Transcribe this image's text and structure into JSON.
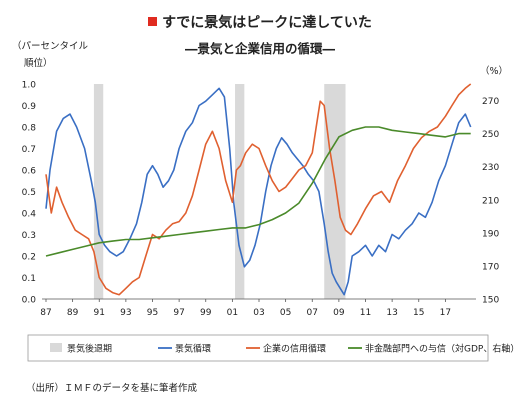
{
  "title": "すでに景気はピークに達していた",
  "subtitle": "―景気と企業信用の循環―",
  "source_note": "（出所）ＩＭＦのデータを基に筆者作成",
  "colors": {
    "recession": "#d9d9d9",
    "business_cycle": "#3a6fc4",
    "credit_cycle": "#e06030",
    "credit_to_gdp": "#4a8a2a",
    "title_marker": "#e02b20"
  },
  "chart_data": {
    "type": "line",
    "title": "すでに景気はピークに達していた",
    "subtitle": "―景気と企業信用の循環―",
    "ylabel_left": "（パーセンタイル順位）",
    "ylabel_left_line1": "（パーセンタイル",
    "ylabel_left_line2": "順位）",
    "ylabel_right": "（%）",
    "ylim_left": [
      0,
      1.0
    ],
    "ylim_right": [
      150,
      280
    ],
    "left_ticks": [
      0.0,
      0.1,
      0.2,
      0.3,
      0.4,
      0.5,
      0.6,
      0.7,
      0.8,
      0.9,
      1.0
    ],
    "left_tick_labels": [
      "0.0",
      "0.1",
      "0.2",
      "0.3",
      "0.4",
      "0.5",
      "0.6",
      "0.7",
      "0.8",
      "0.9",
      "1.0"
    ],
    "right_ticks": [
      150,
      170,
      190,
      210,
      230,
      250,
      270
    ],
    "xlim": [
      1986.7,
      2019.3
    ],
    "x_ticks": [
      1987,
      1989,
      1991,
      1993,
      1995,
      1997,
      1999,
      2001,
      2003,
      2005,
      2007,
      2009,
      2011,
      2013,
      2015,
      2017
    ],
    "x_tick_labels": [
      "87",
      "89",
      "91",
      "93",
      "95",
      "97",
      "99",
      "01",
      "03",
      "05",
      "07",
      "09",
      "11",
      "13",
      "15",
      "17"
    ],
    "grid": false,
    "legend_position": "bottom",
    "recessions": [
      [
        1990.6,
        1991.3
      ],
      [
        2001.2,
        2001.9
      ],
      [
        2007.9,
        2009.5
      ]
    ],
    "series": [
      {
        "name": "景気循環",
        "key": "business_cycle",
        "axis": "left",
        "x": [
          1987.0,
          1987.3,
          1987.8,
          1988.3,
          1988.8,
          1989.3,
          1989.9,
          1990.4,
          1990.7,
          1991.0,
          1991.4,
          1991.8,
          1992.3,
          1992.8,
          1993.3,
          1993.8,
          1994.2,
          1994.6,
          1995.0,
          1995.4,
          1995.8,
          1996.2,
          1996.6,
          1997.0,
          1997.5,
          1998.0,
          1998.5,
          1999.0,
          1999.5,
          2000.0,
          2000.4,
          2000.8,
          2001.1,
          2001.5,
          2001.9,
          2002.3,
          2002.7,
          2003.1,
          2003.5,
          2003.9,
          2004.3,
          2004.7,
          2005.1,
          2005.5,
          2005.9,
          2006.3,
          2006.7,
          2007.1,
          2007.5,
          2007.9,
          2008.2,
          2008.5,
          2008.8,
          2009.1,
          2009.4,
          2009.7,
          2010.0,
          2010.5,
          2011.0,
          2011.5,
          2012.0,
          2012.5,
          2013.0,
          2013.5,
          2014.0,
          2014.5,
          2015.0,
          2015.5,
          2016.0,
          2016.5,
          2017.0,
          2017.5,
          2018.0,
          2018.5,
          2018.9
        ],
        "values": [
          0.42,
          0.6,
          0.78,
          0.84,
          0.86,
          0.8,
          0.7,
          0.55,
          0.45,
          0.3,
          0.25,
          0.22,
          0.2,
          0.22,
          0.28,
          0.35,
          0.45,
          0.58,
          0.62,
          0.58,
          0.52,
          0.55,
          0.6,
          0.7,
          0.78,
          0.82,
          0.9,
          0.92,
          0.95,
          0.98,
          0.94,
          0.7,
          0.45,
          0.25,
          0.15,
          0.18,
          0.25,
          0.35,
          0.5,
          0.62,
          0.7,
          0.75,
          0.72,
          0.68,
          0.65,
          0.62,
          0.58,
          0.55,
          0.5,
          0.35,
          0.22,
          0.12,
          0.08,
          0.05,
          0.02,
          0.08,
          0.2,
          0.22,
          0.25,
          0.2,
          0.25,
          0.22,
          0.3,
          0.28,
          0.32,
          0.35,
          0.4,
          0.38,
          0.45,
          0.55,
          0.62,
          0.72,
          0.82,
          0.86,
          0.8
        ]
      },
      {
        "name": "企業の信用循環",
        "key": "credit_cycle",
        "axis": "left",
        "x": [
          1987.0,
          1987.4,
          1987.8,
          1988.2,
          1988.7,
          1989.2,
          1989.7,
          1990.2,
          1990.6,
          1991.0,
          1991.5,
          1992.0,
          1992.5,
          1993.0,
          1993.5,
          1994.0,
          1994.5,
          1995.0,
          1995.5,
          1996.0,
          1996.5,
          1997.0,
          1997.5,
          1998.0,
          1998.5,
          1999.0,
          1999.5,
          2000.0,
          2000.5,
          2001.0,
          2001.3,
          2001.6,
          2002.0,
          2002.5,
          2003.0,
          2003.5,
          2004.0,
          2004.5,
          2005.0,
          2005.5,
          2006.0,
          2006.5,
          2007.0,
          2007.3,
          2007.6,
          2007.9,
          2008.3,
          2008.7,
          2009.1,
          2009.5,
          2009.9,
          2010.4,
          2011.0,
          2011.6,
          2012.2,
          2012.8,
          2013.4,
          2014.0,
          2014.6,
          2015.2,
          2015.8,
          2016.4,
          2017.0,
          2017.5,
          2018.0,
          2018.5,
          2018.9
        ],
        "values": [
          0.58,
          0.4,
          0.52,
          0.45,
          0.38,
          0.32,
          0.3,
          0.28,
          0.22,
          0.1,
          0.05,
          0.03,
          0.02,
          0.05,
          0.08,
          0.1,
          0.2,
          0.3,
          0.28,
          0.32,
          0.35,
          0.36,
          0.4,
          0.48,
          0.6,
          0.72,
          0.78,
          0.7,
          0.55,
          0.45,
          0.6,
          0.62,
          0.68,
          0.72,
          0.7,
          0.62,
          0.55,
          0.5,
          0.52,
          0.56,
          0.6,
          0.62,
          0.68,
          0.8,
          0.92,
          0.9,
          0.7,
          0.55,
          0.38,
          0.32,
          0.3,
          0.35,
          0.42,
          0.48,
          0.5,
          0.45,
          0.55,
          0.62,
          0.7,
          0.75,
          0.78,
          0.8,
          0.85,
          0.9,
          0.95,
          0.98,
          1.0
        ]
      },
      {
        "name": "非金融部門への与信（対GDP、右軸）",
        "key": "credit_to_gdp",
        "axis": "right",
        "x": [
          1987.0,
          1988.0,
          1989.0,
          1990.0,
          1991.0,
          1992.0,
          1993.0,
          1994.0,
          1995.0,
          1996.0,
          1997.0,
          1998.0,
          1999.0,
          2000.0,
          2001.0,
          2002.0,
          2003.0,
          2004.0,
          2005.0,
          2006.0,
          2007.0,
          2008.0,
          2009.0,
          2010.0,
          2011.0,
          2012.0,
          2013.0,
          2014.0,
          2015.0,
          2016.0,
          2017.0,
          2018.0,
          2018.9
        ],
        "values": [
          176,
          178,
          180,
          182,
          184,
          185,
          186,
          186,
          187,
          188,
          189,
          190,
          191,
          192,
          193,
          193,
          195,
          198,
          202,
          208,
          220,
          235,
          248,
          252,
          254,
          254,
          252,
          251,
          250,
          249,
          248,
          250,
          250
        ]
      }
    ],
    "legend": [
      {
        "label": "景気後退期",
        "key": "recession",
        "kind": "box"
      },
      {
        "label": "景気循環",
        "key": "business_cycle",
        "kind": "line"
      },
      {
        "label": "企業の信用循環",
        "key": "credit_cycle",
        "kind": "line"
      },
      {
        "label": "非金融部門への与信（対GDP、右軸）",
        "key": "credit_to_gdp",
        "kind": "line"
      }
    ]
  }
}
